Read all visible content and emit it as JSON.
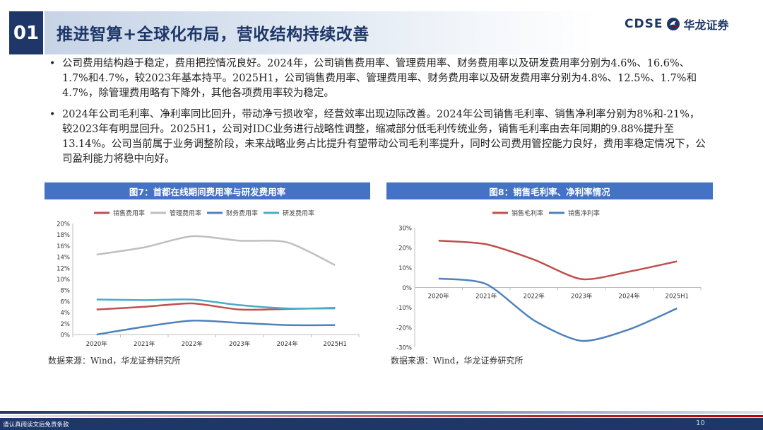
{
  "header": {
    "section_number": "01",
    "title": "推进智算+全球化布局，营收结构持续改善",
    "logo_en": "CDSE",
    "logo_cn": "华龙证券"
  },
  "bullets": [
    "公司费用结构趋于稳定，费用把控情况良好。2024年，公司销售费用率、管理费用率、财务费用率以及研发费用率分别为4.6%、16.6%、1.7%和4.7%，较2023年基本持平。2025H1，公司销售费用率、管理费用率、财务费用率以及研发费用率分别为4.8%、12.5%、1.7%和4.7%，除管理费用略有下降外，其他各项费用率较为稳定。",
    "2024年公司毛利率、净利率同比回升，带动净亏损收窄，经营效率出现边际改善。2024年公司销售毛利率、销售净利率分别为8%和-21%，较2023年有明显回升。2025H1，公司对IDC业务进行战略性调整，缩减部分低毛利传统业务，销售毛利率由去年同期的9.88%提升至13.14%。公司当前属于业务调整阶段，未来战略业务占比提升有望带动公司毛利率提升，同时公司费用管控能力良好，费用率稳定情况下，公司盈利能力将稳中向好。"
  ],
  "chart_titles": [
    "图7：首都在线期间费用率与研发费用率",
    "图8：销售毛利率、净利率情况"
  ],
  "source_text": "数据来源：Wind，华龙证券研究所",
  "footer": {
    "disclaimer": "请认真阅读文后免责条款",
    "page": "10"
  },
  "chart_data": [
    {
      "type": "line",
      "title": "图7：首都在线期间费用率与研发费用率",
      "categories": [
        "2020年",
        "2021年",
        "2022年",
        "2023年",
        "2024年",
        "2025H1"
      ],
      "yticks": [
        "0%",
        "2%",
        "4%",
        "6%",
        "8%",
        "10%",
        "12%",
        "14%",
        "16%",
        "18%",
        "20%"
      ],
      "ylim": [
        0,
        20
      ],
      "legend_position": "top",
      "series": [
        {
          "name": "销售费用率",
          "color": "#c0504d",
          "values": [
            4.5,
            5.0,
            5.6,
            4.5,
            4.6,
            4.8
          ]
        },
        {
          "name": "管理费用率",
          "color": "#bfbfbf",
          "values": [
            14.4,
            15.7,
            17.7,
            16.9,
            16.6,
            12.5
          ]
        },
        {
          "name": "财务费用率",
          "color": "#4f81bd",
          "values": [
            0.0,
            1.4,
            2.5,
            2.1,
            1.7,
            1.7
          ]
        },
        {
          "name": "研发费用率",
          "color": "#4bacc6",
          "values": [
            6.3,
            6.2,
            6.3,
            5.3,
            4.7,
            4.7
          ]
        }
      ]
    },
    {
      "type": "line",
      "title": "图8：销售毛利率、净利率情况",
      "categories": [
        "2020年",
        "2021年",
        "2022年",
        "2023年",
        "2024年",
        "2025H1"
      ],
      "yticks": [
        "-30%",
        "-20%",
        "-10%",
        "0%",
        "10%",
        "20%",
        "30%"
      ],
      "ylim": [
        -30,
        30
      ],
      "legend_position": "top",
      "series": [
        {
          "name": "销售毛利率",
          "color": "#c0504d",
          "values": [
            23.5,
            21.7,
            14.0,
            4.2,
            8.0,
            13.14
          ]
        },
        {
          "name": "销售净利率",
          "color": "#4f81bd",
          "values": [
            4.5,
            1.7,
            -16.5,
            -26.8,
            -21.0,
            -10.5
          ]
        }
      ]
    }
  ]
}
